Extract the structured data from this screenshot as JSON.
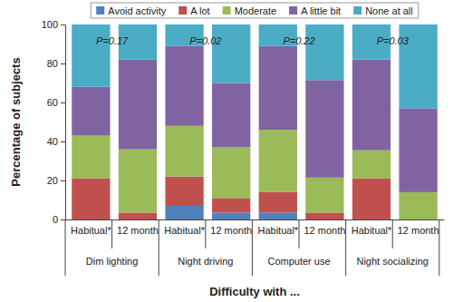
{
  "chart_data": {
    "type": "bar",
    "stacked": true,
    "x_label": "Difficulty with ...",
    "y_label": "Percentage of subjects",
    "categories": [
      "Habitual*",
      "12 month",
      "Habitual*",
      "12 month",
      "Habitual*",
      "12 month",
      "Habitual*",
      "12 month"
    ],
    "category_groups": [
      "Dim lighting",
      "Night driving",
      "Computer use",
      "Night socializing"
    ],
    "annotations": [
      "P=0.17",
      "P=0.02",
      "P=0.22",
      "P=0.03"
    ],
    "series": [
      {
        "name": "Avoid activity",
        "color": "#4f81bd",
        "values": [
          0,
          0,
          7,
          3.5,
          3.5,
          0,
          0,
          0
        ]
      },
      {
        "name": "A lot",
        "color": "#c0504d",
        "values": [
          21,
          3.5,
          15,
          7.5,
          10.5,
          3.5,
          21,
          0
        ]
      },
      {
        "name": "Moderate",
        "color": "#9bbb59",
        "values": [
          22,
          32.5,
          26,
          26,
          32,
          18,
          14.5,
          14
        ]
      },
      {
        "name": "A little bit",
        "color": "#8064a2",
        "values": [
          25,
          46,
          41,
          33,
          43,
          50,
          46.5,
          43
        ]
      },
      {
        "name": "None at all",
        "color": "#4bacc6",
        "values": [
          32,
          18,
          11,
          30,
          11,
          28.5,
          18,
          43
        ]
      }
    ],
    "ylim": [
      0,
      100
    ],
    "yticks": [
      0,
      20,
      40,
      60,
      80,
      100
    ],
    "grid": false,
    "legend": "top"
  }
}
